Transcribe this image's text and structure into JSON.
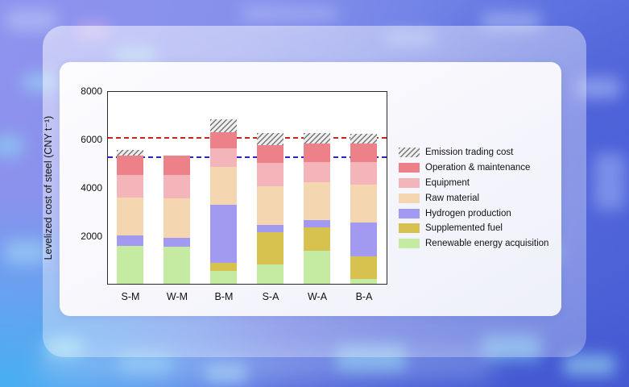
{
  "chart_data": {
    "type": "bar",
    "stacked": true,
    "title": "",
    "xlabel": "",
    "ylabel": "Levelized cost of steel (CNY t⁻¹)",
    "ylim": [
      0,
      8000
    ],
    "yticks": [
      2000,
      4000,
      6000,
      8000
    ],
    "grid": false,
    "legend_position": "right-outside",
    "categories": [
      "S-M",
      "W-M",
      "B-M",
      "S-A",
      "W-A",
      "B-A"
    ],
    "series": [
      {
        "name": "Renewable energy acquisition",
        "color": "#c5eba2",
        "values": [
          1580,
          1550,
          530,
          810,
          1370,
          200
        ]
      },
      {
        "name": "Supplemented fuel",
        "color": "#d7c24f",
        "values": [
          0,
          0,
          330,
          1340,
          950,
          950
        ]
      },
      {
        "name": "Hydrogen production",
        "color": "#a299f0",
        "values": [
          410,
          360,
          2400,
          280,
          300,
          1390
        ]
      },
      {
        "name": "Raw material",
        "color": "#f4d6b0",
        "values": [
          1580,
          1640,
          1560,
          1620,
          1590,
          1560
        ]
      },
      {
        "name": "Equipment",
        "color": "#f3b4ba",
        "values": [
          915,
          950,
          780,
          950,
          840,
          950
        ]
      },
      {
        "name": "Operation & maintenance",
        "color": "#ec8189",
        "values": [
          810,
          810,
          670,
          720,
          760,
          760
        ]
      },
      {
        "name": "Emission trading cost",
        "color": "hatch",
        "values": [
          245,
          0,
          530,
          500,
          410,
          380
        ]
      }
    ],
    "totals": [
      5540,
      5310,
      6800,
      6220,
      6220,
      6190
    ],
    "reference_lines": [
      {
        "value": 6100,
        "color": "#c8251d",
        "style": "dashed"
      },
      {
        "value": 5300,
        "color": "#2a28c0",
        "style": "dashed"
      }
    ]
  }
}
